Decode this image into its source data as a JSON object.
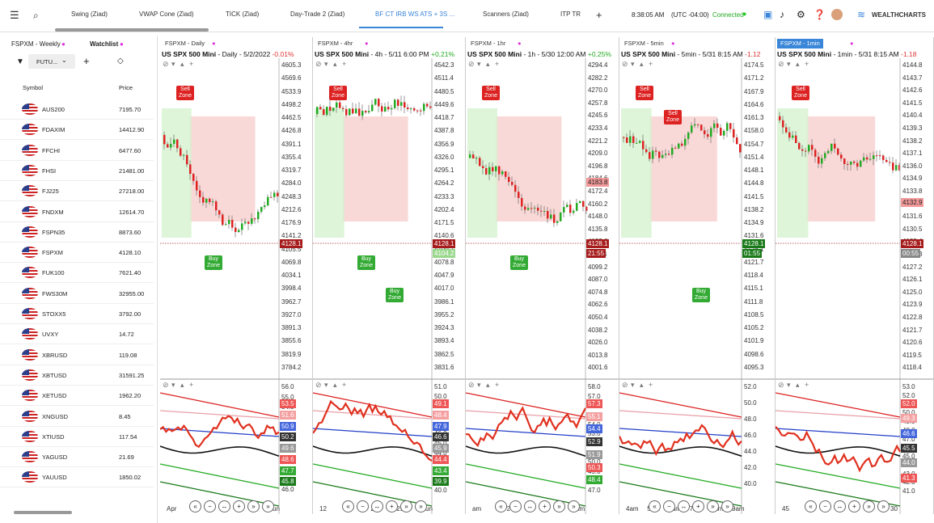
{
  "topbar": {
    "menu_icon": "hamburger-icon",
    "search_icon": "search-icon",
    "tabs": [
      {
        "label": "Swing (Ziad)"
      },
      {
        "label": "VWAP Cone (Ziad)"
      },
      {
        "label": "TICK (Ziad)"
      },
      {
        "label": "Day-Trade 2 (Ziad)"
      },
      {
        "label": "BF CT IRB WS ATS + 3S ..."
      },
      {
        "label": "Scanners (Ziad)"
      },
      {
        "label": "ITP TR"
      }
    ],
    "add_tab": "+",
    "time": "8:38:05 AM",
    "timezone": "(UTC -04:00)",
    "status": "Connected",
    "brand": "WEALTHCHARTS"
  },
  "sidebar": {
    "tab1": "FSPXM - Weekly",
    "tab2": "Watchlist",
    "filter_value": "FUTU...",
    "col_symbol": "Symbol",
    "col_price": "Price",
    "rows": [
      {
        "symbol": "AUS200",
        "price": "7195.70"
      },
      {
        "symbol": "FDAXIM",
        "price": "14412.90"
      },
      {
        "symbol": "FFCHI",
        "price": "6477.60"
      },
      {
        "symbol": "FHSI",
        "price": "21481.00"
      },
      {
        "symbol": "FJ225",
        "price": "27218.00"
      },
      {
        "symbol": "FNDXM",
        "price": "12614.70"
      },
      {
        "symbol": "FSPN35",
        "price": "8873.60"
      },
      {
        "symbol": "FSPXM",
        "price": "4128.10"
      },
      {
        "symbol": "FUK100",
        "price": "7621.40"
      },
      {
        "symbol": "FWS30M",
        "price": "32955.00"
      },
      {
        "symbol": "STOXX5",
        "price": "3792.00"
      },
      {
        "symbol": "UVXY",
        "price": "14.72"
      },
      {
        "symbol": "XBRUSD",
        "price": "119.08"
      },
      {
        "symbol": "XBTUSD",
        "price": "31591.25"
      },
      {
        "symbol": "XETUSD",
        "price": "1962.20"
      },
      {
        "symbol": "XNGUSD",
        "price": "8.45"
      },
      {
        "symbol": "XTIUSD",
        "price": "117.54"
      },
      {
        "symbol": "YAGUSD",
        "price": "21.69"
      },
      {
        "symbol": "YAUUSD",
        "price": "1850.02"
      }
    ]
  },
  "charts": [
    {
      "tab": "FSPXM - Daily",
      "title": "US SPX 500 Mini",
      "info": "- Daily - 5/2/2022",
      "change": "-0.01%",
      "price_tag": "4128.1",
      "ticks": [
        "4605.3",
        "4569.6",
        "4533.9",
        "4498.2",
        "4462.5",
        "4426.8",
        "4391.1",
        "4355.4",
        "4319.7",
        "4284.0",
        "4248.3",
        "4212.6",
        "4176.9",
        "4141.2",
        "4105.5",
        "4069.8",
        "4034.1",
        "3998.4",
        "3962.7",
        "3927.0",
        "3891.3",
        "3855.6",
        "3819.9",
        "3784.2"
      ],
      "osc_ticks": [
        "56.0",
        "55.0",
        "54.0",
        "53.0",
        "52.0",
        "51.0",
        "50.0",
        "49.0",
        "48.0",
        "47.0",
        "46.0"
      ],
      "osc_tags": [
        "53.5",
        "51.6",
        "50.9",
        "50.2",
        "49.6",
        "48.6",
        "47.7",
        "45.8"
      ],
      "x_labels": [
        "Apr",
        "Jun"
      ],
      "zones": [
        {
          "text": "Sell Zone"
        },
        {
          "text": "Buy Zone"
        }
      ]
    },
    {
      "tab": "FSPXM - 4hr",
      "title": "US SPX 500 Mini",
      "info": "- 4h - 5/11 6:00 PM",
      "change": "+0.21%",
      "price_tag": "4128.1",
      "price_tag2": "4104.2",
      "ticks": [
        "4542.3",
        "4511.4",
        "4480.5",
        "4449.6",
        "4418.7",
        "4387.8",
        "4356.9",
        "4326.0",
        "4295.1",
        "4264.2",
        "4233.3",
        "4202.4",
        "4171.5",
        "4140.6",
        "4109.7",
        "4078.8",
        "4047.9",
        "4017.0",
        "3986.1",
        "3955.2",
        "3924.3",
        "3893.4",
        "3862.5",
        "3831.6"
      ],
      "osc_ticks": [
        "51.0",
        "50.0",
        "49.0",
        "48.0",
        "47.0",
        "46.0",
        "45.0",
        "44.0",
        "43.0",
        "42.0",
        "41.0",
        "40.0"
      ],
      "osc_tags": [
        "49.1",
        "48.4",
        "47.9",
        "46.6",
        "45.9",
        "44.4",
        "43.4",
        "39.9"
      ],
      "x_labels": [
        "12",
        "17",
        "20",
        "25",
        "Jun"
      ],
      "zones": [
        {
          "text": "Sell Zone"
        },
        {
          "text": "Buy Zone"
        },
        {
          "text": "Buy Zone"
        }
      ]
    },
    {
      "tab": "FSPXM - 1hr",
      "title": "US SPX 500 Mini",
      "info": "- 1h - 5/30 12:00 AM",
      "change": "+0.25%",
      "price_tag": "4128.1",
      "price_tag2": "21:55",
      "price_tag3": "4183.8",
      "ticks": [
        "4294.4",
        "4282.2",
        "4270.0",
        "4257.8",
        "4245.6",
        "4233.4",
        "4221.2",
        "4209.0",
        "4196.8",
        "4184.6",
        "4172.4",
        "4160.2",
        "4148.0",
        "4135.8",
        "4123.6",
        "4111.4",
        "4099.2",
        "4087.0",
        "4074.8",
        "4062.6",
        "4050.4",
        "4038.2",
        "4026.0",
        "4013.8",
        "4001.6"
      ],
      "osc_ticks": [
        "58.0",
        "57.0",
        "56.0",
        "55.0",
        "54.0",
        "53.0",
        "52.0",
        "51.0",
        "50.0",
        "49.0",
        "48.0",
        "47.0"
      ],
      "osc_tags": [
        "57.3",
        "55.1",
        "54.4",
        "52.9",
        "51.9",
        "50.3",
        "48.4"
      ],
      "x_labels": [
        "am",
        "26",
        "31",
        "am"
      ],
      "zones": [
        {
          "text": "Sell Zone"
        },
        {
          "text": "Buy Zone"
        }
      ]
    },
    {
      "tab": "FSPXM - 5min",
      "title": "US SPX 500 Mini",
      "info": "- 5min - 5/31 8:15 AM",
      "change": "-1.12",
      "price_tag": "4128.1",
      "price_tag2": "01:55",
      "ticks": [
        "4174.5",
        "4171.2",
        "4167.9",
        "4164.6",
        "4161.3",
        "4158.0",
        "4154.7",
        "4151.4",
        "4148.1",
        "4144.8",
        "4141.5",
        "4138.2",
        "4134.9",
        "4131.6",
        "4128.1",
        "4121.7",
        "4118.4",
        "4115.1",
        "4111.8",
        "4108.5",
        "4105.2",
        "4101.9",
        "4098.6",
        "4095.3"
      ],
      "osc_ticks": [
        "52.0",
        "50.0",
        "48.0",
        "46.0",
        "44.0",
        "42.0",
        "40.0"
      ],
      "osc_tags": [],
      "x_labels": [
        "4am",
        "5am",
        "6am",
        "7am",
        "8am",
        "9am"
      ],
      "zones": [
        {
          "text": "Sell Zone"
        },
        {
          "text": "Sell Zone"
        },
        {
          "text": "Buy Zone"
        }
      ]
    },
    {
      "tab": "FSPXM - 1min",
      "title": "US SPX 500 Mini",
      "info": "- 1min - 5/31 8:15 AM",
      "change": "-1.18",
      "price_tag": "4128.1",
      "price_tag2": "00:55",
      "price_tag3": "4132.9",
      "ticks": [
        "4144.8",
        "4143.7",
        "4142.6",
        "4141.5",
        "4140.4",
        "4139.3",
        "4138.2",
        "4137.1",
        "4136.0",
        "4134.9",
        "4133.8",
        "4132.7",
        "4131.6",
        "4130.5",
        "4129.4",
        "4128.3",
        "4127.2",
        "4126.1",
        "4125.0",
        "4123.9",
        "4122.8",
        "4121.7",
        "4120.6",
        "4119.5",
        "4118.4"
      ],
      "osc_ticks": [
        "53.0",
        "52.0",
        "51.0",
        "50.0",
        "49.0",
        "48.0",
        "47.0",
        "46.0",
        "45.0",
        "44.0",
        "43.0",
        "42.0",
        "41.0"
      ],
      "osc_tags": [
        "52.0",
        "49.3",
        "46.6",
        "45.5",
        "44.0",
        "41.3"
      ],
      "x_labels": [
        "45",
        "8a",
        "30"
      ],
      "zones": [
        {
          "text": "Sell Zone"
        }
      ]
    }
  ],
  "nav_buttons": [
    "«",
    "−",
    "↔",
    "+",
    "»",
    "»"
  ]
}
